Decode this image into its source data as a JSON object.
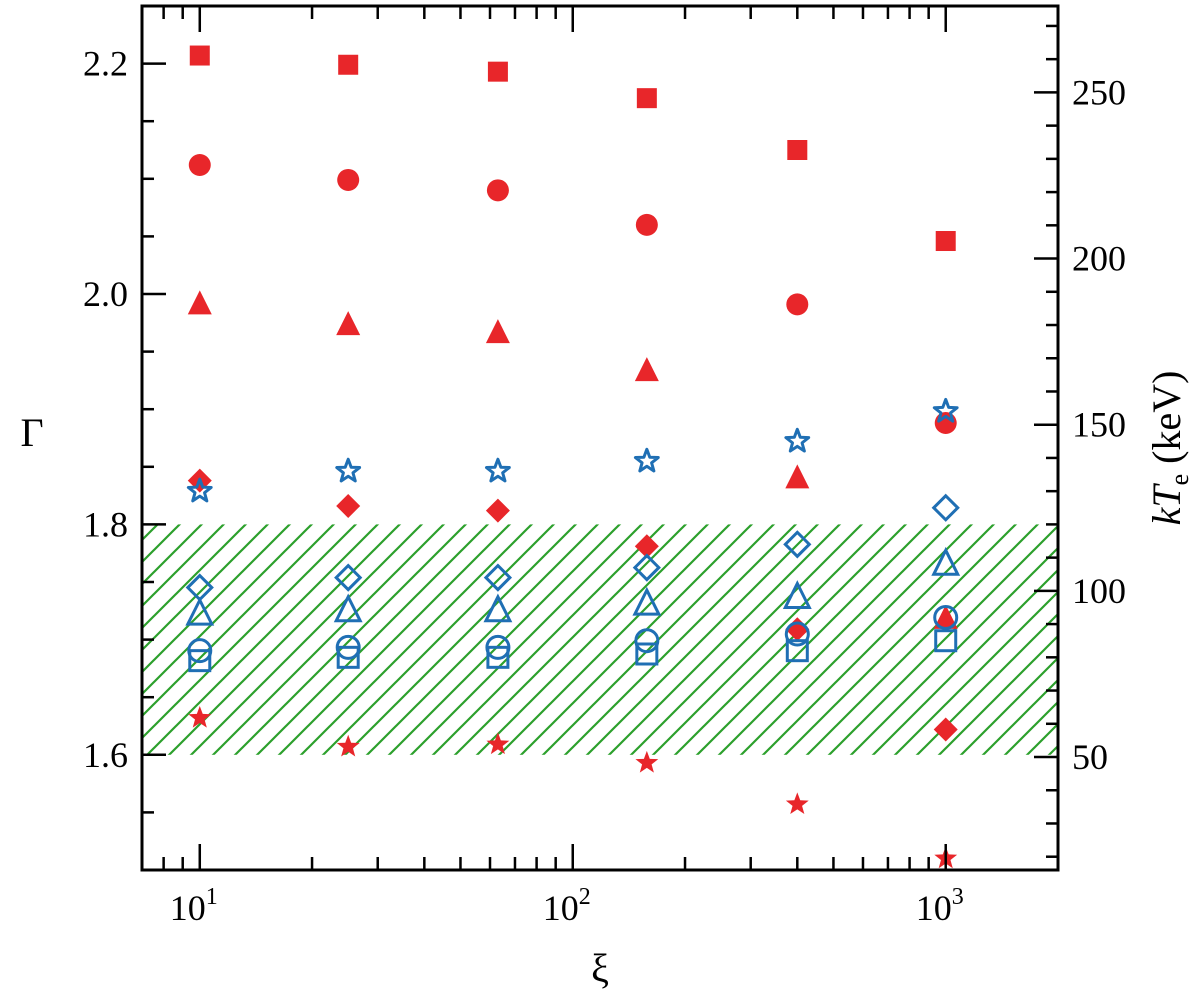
{
  "chart_data": {
    "type": "scatter",
    "x_axis": {
      "label": "ξ",
      "scale": "log",
      "range": [
        7,
        2000
      ],
      "tick_labels": [
        {
          "value": 10,
          "base": "10",
          "exp": "1"
        },
        {
          "value": 100,
          "base": "10",
          "exp": "2"
        },
        {
          "value": 1000,
          "base": "10",
          "exp": "3"
        }
      ]
    },
    "y_axis_left": {
      "label": "Γ",
      "range": [
        1.5,
        2.25
      ],
      "ticks": [
        1.6,
        1.8,
        2.0,
        2.2
      ],
      "tick_labels": [
        "1.6",
        "1.8",
        "2.0",
        "2.2"
      ]
    },
    "y_axis_right": {
      "label_italic": "kT",
      "label_sub": "e",
      "label_unit": " (keV)",
      "range": [
        16,
        276
      ],
      "ticks": [
        50,
        100,
        150,
        200,
        250
      ],
      "tick_labels": [
        "50",
        "100",
        "150",
        "200",
        "250"
      ]
    },
    "shaded_band": {
      "axis": "left",
      "y_range": [
        1.6,
        1.8
      ],
      "pattern": "diagonal hatch",
      "color": "#2ca02c"
    },
    "x": [
      10,
      25,
      63,
      158,
      400,
      1000
    ],
    "series": [
      {
        "axis": "left",
        "marker": "square",
        "filled": true,
        "color": "#e8262a",
        "values": [
          2.207,
          2.199,
          2.193,
          2.17,
          2.125,
          2.046
        ]
      },
      {
        "axis": "left",
        "marker": "circle",
        "filled": true,
        "color": "#e8262a",
        "values": [
          2.112,
          2.099,
          2.09,
          2.06,
          1.991,
          1.888
        ]
      },
      {
        "axis": "left",
        "marker": "triangle",
        "filled": true,
        "color": "#e8262a",
        "values": [
          1.991,
          1.973,
          1.966,
          1.933,
          1.84,
          1.718
        ]
      },
      {
        "axis": "left",
        "marker": "diamond",
        "filled": true,
        "color": "#e8262a",
        "values": [
          1.838,
          1.816,
          1.812,
          1.781,
          1.709,
          1.622
        ]
      },
      {
        "axis": "left",
        "marker": "star",
        "filled": true,
        "color": "#e8262a",
        "values": [
          1.632,
          1.607,
          1.609,
          1.593,
          1.557,
          1.51
        ]
      },
      {
        "axis": "right",
        "marker": "star",
        "filled": false,
        "color": "#1f6fb4",
        "values": [
          130,
          136,
          136,
          139,
          145,
          154
        ]
      },
      {
        "axis": "right",
        "marker": "diamond",
        "filled": false,
        "color": "#1f6fb4",
        "values": [
          101,
          104,
          104,
          107,
          114,
          125
        ]
      },
      {
        "axis": "right",
        "marker": "triangle",
        "filled": false,
        "color": "#1f6fb4",
        "values": [
          93,
          94,
          94,
          96,
          98,
          108
        ]
      },
      {
        "axis": "right",
        "marker": "circle",
        "filled": false,
        "color": "#1f6fb4",
        "values": [
          82,
          83,
          83,
          85,
          87,
          92
        ]
      },
      {
        "axis": "right",
        "marker": "square",
        "filled": false,
        "color": "#1f6fb4",
        "values": [
          79,
          80,
          80,
          81,
          82,
          85
        ]
      }
    ]
  }
}
